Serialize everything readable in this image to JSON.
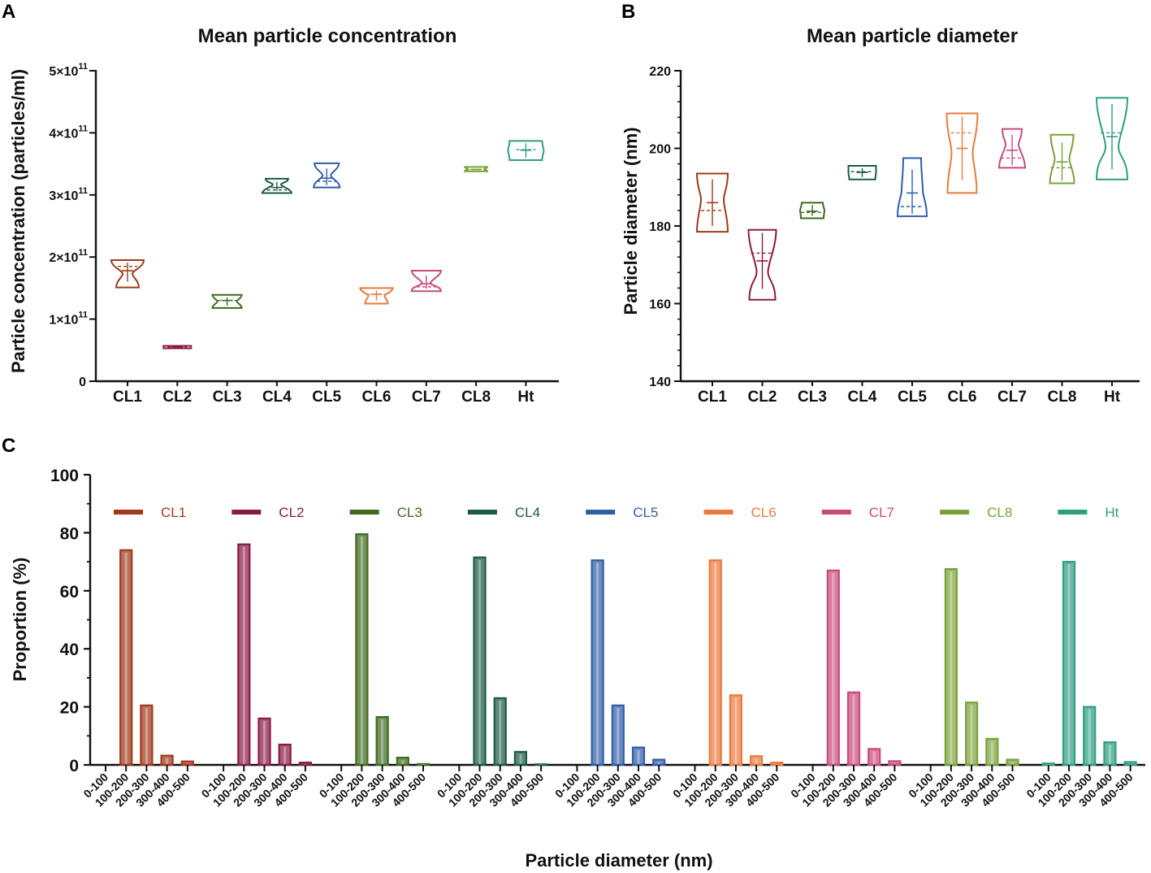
{
  "colors": {
    "CL1": "#a0391a",
    "CL2": "#8a1a45",
    "CL3": "#3f6a1e",
    "CL4": "#1b5b44",
    "CL5": "#2f5ea8",
    "CL6": "#ea7a3e",
    "CL7": "#c94a7c",
    "CL8": "#7aa23a",
    "Ht": "#2f9e82"
  },
  "chart_data": [
    {
      "panel": "A",
      "type": "violin",
      "title": "Mean particle concentration",
      "xlabel": "",
      "ylabel": "Particle concentration (particles/ml)",
      "ylim": [
        0,
        500000000000.0
      ],
      "ytick_labels": [
        "0",
        "1×10",
        "2×10",
        "3×10",
        "4×10",
        "5×10"
      ],
      "ytick_exponent": "11",
      "categories": [
        "CL1",
        "CL2",
        "CL3",
        "CL4",
        "CL5",
        "CL6",
        "CL7",
        "CL8",
        "Ht"
      ],
      "violins": [
        {
          "min": 151000000000.0,
          "max": 195000000000.0,
          "median": 185000000000.0,
          "mean": 178000000000.0
        },
        {
          "min": 53000000000.0,
          "max": 57000000000.0,
          "median": 55000000000.0,
          "mean": 55000000000.0
        },
        {
          "min": 118000000000.0,
          "max": 139000000000.0,
          "median": 130000000000.0,
          "mean": 130000000000.0
        },
        {
          "min": 303000000000.0,
          "max": 326000000000.0,
          "median": 308000000000.0,
          "mean": 312000000000.0
        },
        {
          "min": 312000000000.0,
          "max": 351000000000.0,
          "median": 322000000000.0,
          "mean": 327000000000.0
        },
        {
          "min": 125000000000.0,
          "max": 150000000000.0,
          "median": 140000000000.0,
          "mean": 140000000000.0
        },
        {
          "min": 145000000000.0,
          "max": 178000000000.0,
          "median": 152000000000.0,
          "mean": 157000000000.0
        },
        {
          "min": 338000000000.0,
          "max": 345000000000.0,
          "median": 341000000000.0,
          "mean": 341000000000.0
        },
        {
          "min": 356000000000.0,
          "max": 387000000000.0,
          "median": 373000000000.0,
          "mean": 372000000000.0
        }
      ]
    },
    {
      "panel": "B",
      "type": "violin",
      "title": "Mean particle diameter",
      "xlabel": "",
      "ylabel": "Particle diameter (nm)",
      "ylim": [
        140,
        220
      ],
      "yticks": [
        140,
        160,
        180,
        200,
        220
      ],
      "categories": [
        "CL1",
        "CL2",
        "CL3",
        "CL4",
        "CL5",
        "CL6",
        "CL7",
        "CL8",
        "Ht"
      ],
      "violins": [
        {
          "min": 178.5,
          "max": 193.5,
          "median": 184.0,
          "mean": 186.0
        },
        {
          "min": 161.0,
          "max": 179.0,
          "median": 173.0,
          "mean": 171.0
        },
        {
          "min": 182.0,
          "max": 186.0,
          "median": 183.5,
          "mean": 183.8
        },
        {
          "min": 192.0,
          "max": 195.5,
          "median": 194.0,
          "mean": 193.8
        },
        {
          "min": 182.5,
          "max": 197.5,
          "median": 185.0,
          "mean": 188.5
        },
        {
          "min": 188.5,
          "max": 209.0,
          "median": 204.0,
          "mean": 200.0
        },
        {
          "min": 195.0,
          "max": 205.0,
          "median": 197.5,
          "mean": 199.5
        },
        {
          "min": 191.0,
          "max": 203.5,
          "median": 195.0,
          "mean": 196.5
        },
        {
          "min": 192.0,
          "max": 213.0,
          "median": 204.0,
          "mean": 203.0
        }
      ]
    },
    {
      "panel": "C",
      "type": "bar",
      "title": "",
      "xlabel": "Particle diameter (nm)",
      "ylabel": "Proportion (%)",
      "ylim": [
        0,
        100
      ],
      "yticks": [
        0,
        20,
        40,
        60,
        80,
        100
      ],
      "bins": [
        "0-100",
        "100-200",
        "200-300",
        "300-400",
        "400-500"
      ],
      "series": [
        {
          "name": "CL1",
          "values": [
            0,
            74,
            20.5,
            3.2,
            1.2
          ]
        },
        {
          "name": "CL2",
          "values": [
            0,
            76,
            16,
            7,
            0.8
          ]
        },
        {
          "name": "CL3",
          "values": [
            0,
            79.5,
            16.5,
            2.5,
            0.3
          ]
        },
        {
          "name": "CL4",
          "values": [
            0,
            71.5,
            23,
            4.5,
            0.2
          ]
        },
        {
          "name": "CL5",
          "values": [
            0,
            70.5,
            20.5,
            6,
            1.8
          ]
        },
        {
          "name": "CL6",
          "values": [
            0,
            70.5,
            24,
            3,
            0.8
          ]
        },
        {
          "name": "CL7",
          "values": [
            0,
            67,
            25,
            5.5,
            1.3
          ]
        },
        {
          "name": "CL8",
          "values": [
            0,
            67.5,
            21.5,
            9,
            1.8
          ]
        },
        {
          "name": "Ht",
          "values": [
            0.5,
            70,
            20,
            7.8,
            1
          ]
        }
      ]
    }
  ]
}
